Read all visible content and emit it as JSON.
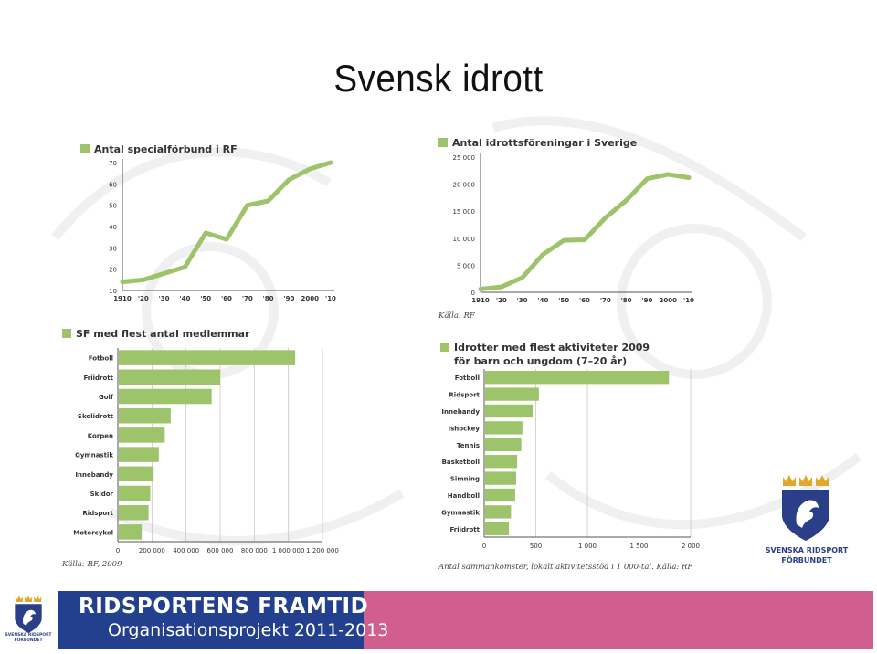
{
  "slide": {
    "title": "Svensk idrott",
    "footer_line1": "RIDSPORTENS FRAMTID",
    "footer_line2": "Organisationsprojekt 2011-2013",
    "logo_text_line1": "SVENSKA RIDSPORT",
    "logo_text_line2": "FÖRBUNDET",
    "small_logo_text_line1": "SVENSKA RIDSPORT",
    "small_logo_text_line2": "FÖRBUNDET"
  },
  "colors": {
    "series": "#9dc46a",
    "axis": "#555555",
    "grid": "#c8c8c8",
    "footer_blue": "#23408e",
    "footer_pink": "#d05f90",
    "logo_blue": "#2a3f88",
    "crown_gold": "#e2a82a"
  },
  "sources": {
    "chart2": "Källa: RF",
    "chart3": "Källa: RF, 2009",
    "chart4": "Antal sammankomster, lokalt aktivitetsstöd i 1 000-tal. Källa: RF"
  },
  "chart_data": [
    {
      "type": "line",
      "title": "Antal specialförbund i RF",
      "x": [
        "1910",
        "'20",
        "'30",
        "'40",
        "'50",
        "'60",
        "'70",
        "'80",
        "'90",
        "2000",
        "'10"
      ],
      "values": [
        14,
        15,
        18,
        21,
        37,
        34,
        50,
        52,
        62,
        67,
        70
      ],
      "yticks": [
        10,
        20,
        30,
        40,
        50,
        60,
        70
      ],
      "ylim": [
        10,
        70
      ],
      "grid": false
    },
    {
      "type": "line",
      "title": "Antal idrottsföreningar i Sverige",
      "x": [
        "1910",
        "'20",
        "'30",
        "'40",
        "'50",
        "'60",
        "'70",
        "'80",
        "'90",
        "2000",
        "'10"
      ],
      "values": [
        600,
        1000,
        2700,
        7000,
        9600,
        9700,
        13800,
        17000,
        21000,
        21800,
        21200
      ],
      "yticks": [
        "0",
        "5 000",
        "10 000",
        "15 000",
        "20 000",
        "25 000"
      ],
      "ylim": [
        0,
        25000
      ],
      "grid": false
    },
    {
      "type": "bar",
      "orientation": "horizontal",
      "title": "SF med flest antal medlemmar",
      "categories": [
        "Fotboll",
        "Friidrott",
        "Golf",
        "Skolidrott",
        "Korpen",
        "Gymnastik",
        "Innebandy",
        "Skidor",
        "Ridsport",
        "Motorcykel"
      ],
      "values": [
        1040000,
        600000,
        550000,
        310000,
        275000,
        240000,
        210000,
        190000,
        180000,
        140000
      ],
      "xticks": [
        "0",
        "200 000",
        "400 000",
        "600 000",
        "800 000",
        "1 000 000",
        "1 200 000"
      ],
      "xlim": [
        0,
        1200000
      ],
      "grid": true
    },
    {
      "type": "bar",
      "orientation": "horizontal",
      "title": "Idrotter med flest aktiviteter 2009\nför barn och ungdom (7–20 år)",
      "categories": [
        "Fotboll",
        "Ridsport",
        "Innebandy",
        "Ishockey",
        "Tennis",
        "Basketboll",
        "Simning",
        "Handboll",
        "Gymnastik",
        "Friidrott"
      ],
      "values": [
        1790,
        530,
        470,
        370,
        360,
        320,
        310,
        300,
        260,
        240
      ],
      "xticks": [
        "0",
        "500",
        "1 000",
        "1 500",
        "2 000"
      ],
      "xlim": [
        0,
        2000
      ],
      "grid": true
    }
  ]
}
